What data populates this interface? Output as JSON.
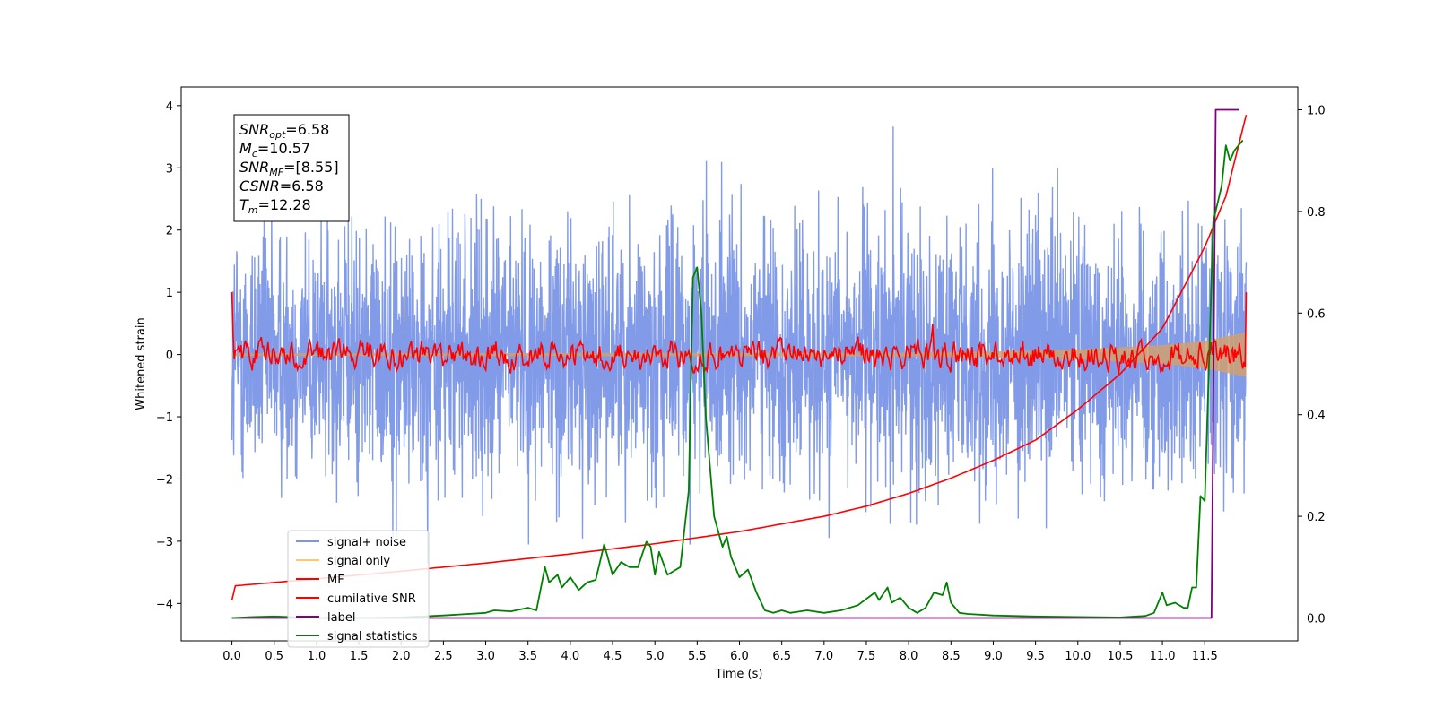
{
  "chart_data": {
    "type": "line",
    "xlabel": "Time (s)",
    "ylabel": "Whitened strain",
    "xlim": [
      -0.6,
      12.6
    ],
    "ylim": [
      -4.6,
      4.3
    ],
    "y2lim": [
      -0.045,
      1.045
    ],
    "x_ticks": [
      0.0,
      0.5,
      1.0,
      1.5,
      2.0,
      2.5,
      3.0,
      3.5,
      4.0,
      4.5,
      5.0,
      5.5,
      6.0,
      6.5,
      7.0,
      7.5,
      8.0,
      8.5,
      9.0,
      9.5,
      10.0,
      10.5,
      11.0,
      11.5
    ],
    "x_tick_labels": [
      "0.0",
      "0.5",
      "1.0",
      "1.5",
      "2.0",
      "2.5",
      "3.0",
      "3.5",
      "4.0",
      "4.5",
      "5.0",
      "5.5",
      "6.0",
      "6.5",
      "7.0",
      "7.5",
      "8.0",
      "8.5",
      "9.0",
      "9.5",
      "10.0",
      "10.5",
      "11.0",
      "11.5"
    ],
    "y_ticks": [
      4,
      3,
      2,
      1,
      0,
      -1,
      -2,
      -3,
      -4
    ],
    "y_tick_labels": [
      "4",
      "3",
      "2",
      "1",
      "0",
      "−1",
      "−2",
      "−3",
      "−4"
    ],
    "y2_ticks": [
      1.0,
      0.8,
      0.6,
      0.4,
      0.2,
      0.0
    ],
    "y2_tick_labels": [
      "1.0",
      "0.8",
      "0.6",
      "0.4",
      "0.2",
      "0.0"
    ],
    "grid": false,
    "legend_position": "lower-left",
    "annotation": [
      {
        "base": "SNR",
        "sub": "opt",
        "rest": "=6.58"
      },
      {
        "base": "M",
        "sub": "c",
        "rest": "=10.57"
      },
      {
        "base": "SNR",
        "sub": "MF",
        "rest": "=[8.55]"
      },
      {
        "base": "CSNR",
        "sub": "",
        "rest": "=6.58"
      },
      {
        "base": "T",
        "sub": "m",
        "rest": "=12.28"
      }
    ],
    "series": [
      {
        "name": "signal+ noise",
        "color": "#7b96e8",
        "axis": "left",
        "t_range": [
          0.0,
          11.99
        ],
        "envelope_upper_approx": 2.0,
        "envelope_lower_approx": -2.0,
        "peak_max": 3.9,
        "peak_min": -3.65
      },
      {
        "name": "signal only",
        "color": "#ffc870",
        "axis": "left",
        "t_range": [
          0.0,
          11.99
        ],
        "amplitude": {
          "t": [
            0.0,
            8.0,
            9.0,
            10.0,
            11.0,
            11.5,
            11.99
          ],
          "a": [
            0.02,
            0.03,
            0.05,
            0.08,
            0.15,
            0.22,
            0.36
          ]
        }
      },
      {
        "name": "MF",
        "color": "#ff0000",
        "axis": "left",
        "t_range": [
          0.0,
          11.99
        ],
        "start_value": 1.0,
        "end_value": 1.0,
        "noise_amplitude": 0.15
      },
      {
        "name": "cumilative SNR",
        "color": "#ff0000",
        "axis": "right",
        "points": {
          "t": [
            0.0,
            0.02,
            1.0,
            2.0,
            3.0,
            4.0,
            5.0,
            5.5,
            6.0,
            6.5,
            7.0,
            7.5,
            8.0,
            8.5,
            9.0,
            9.5,
            10.0,
            10.5,
            11.0,
            11.5,
            11.75,
            11.99
          ],
          "v": [
            0.035,
            0.063,
            0.077,
            0.092,
            0.108,
            0.126,
            0.146,
            0.158,
            0.17,
            0.185,
            0.2,
            0.22,
            0.245,
            0.275,
            0.31,
            0.35,
            0.41,
            0.48,
            0.57,
            0.73,
            0.83,
            0.99
          ]
        }
      },
      {
        "name": "label",
        "color": "#800080",
        "axis": "right",
        "points": {
          "t": [
            0.0,
            11.58,
            11.63,
            11.9
          ],
          "v": [
            0.0,
            0.0,
            1.0,
            1.0
          ]
        }
      },
      {
        "name": "signal statistics",
        "color": "#008000",
        "axis": "right",
        "points": {
          "t": [
            0.0,
            0.25,
            0.5,
            1.0,
            1.5,
            2.0,
            2.5,
            3.0,
            3.1,
            3.3,
            3.5,
            3.6,
            3.7,
            3.75,
            3.85,
            3.9,
            4.0,
            4.1,
            4.2,
            4.3,
            4.4,
            4.5,
            4.6,
            4.7,
            4.8,
            4.9,
            4.95,
            5.0,
            5.05,
            5.15,
            5.2,
            5.3,
            5.4,
            5.45,
            5.5,
            5.55,
            5.6,
            5.7,
            5.75,
            5.8,
            5.85,
            5.9,
            6.0,
            6.1,
            6.2,
            6.3,
            6.4,
            6.5,
            6.6,
            6.8,
            7.0,
            7.2,
            7.4,
            7.6,
            7.65,
            7.75,
            7.8,
            7.9,
            8.0,
            8.1,
            8.2,
            8.3,
            8.4,
            8.45,
            8.5,
            8.6,
            8.7,
            9.0,
            9.5,
            10.0,
            10.5,
            10.8,
            10.9,
            11.0,
            11.05,
            11.15,
            11.25,
            11.3,
            11.35,
            11.4,
            11.45,
            11.5,
            11.55,
            11.6,
            11.7,
            11.75,
            11.8,
            11.85,
            11.9,
            11.95
          ],
          "v": [
            0.0,
            0.002,
            0.003,
            0.0,
            0.0,
            0.001,
            0.005,
            0.01,
            0.015,
            0.013,
            0.02,
            0.015,
            0.1,
            0.07,
            0.085,
            0.06,
            0.08,
            0.055,
            0.07,
            0.075,
            0.145,
            0.085,
            0.11,
            0.1,
            0.1,
            0.15,
            0.14,
            0.085,
            0.13,
            0.085,
            0.09,
            0.1,
            0.25,
            0.67,
            0.69,
            0.6,
            0.4,
            0.2,
            0.17,
            0.14,
            0.16,
            0.12,
            0.08,
            0.095,
            0.05,
            0.015,
            0.01,
            0.015,
            0.01,
            0.015,
            0.01,
            0.015,
            0.025,
            0.05,
            0.035,
            0.06,
            0.03,
            0.04,
            0.02,
            0.01,
            0.02,
            0.05,
            0.045,
            0.07,
            0.03,
            0.01,
            0.008,
            0.005,
            0.003,
            0.002,
            0.001,
            0.004,
            0.01,
            0.05,
            0.025,
            0.03,
            0.02,
            0.02,
            0.06,
            0.06,
            0.24,
            0.23,
            0.5,
            0.78,
            0.85,
            0.93,
            0.9,
            0.92,
            0.93,
            0.94
          ]
        }
      }
    ]
  }
}
